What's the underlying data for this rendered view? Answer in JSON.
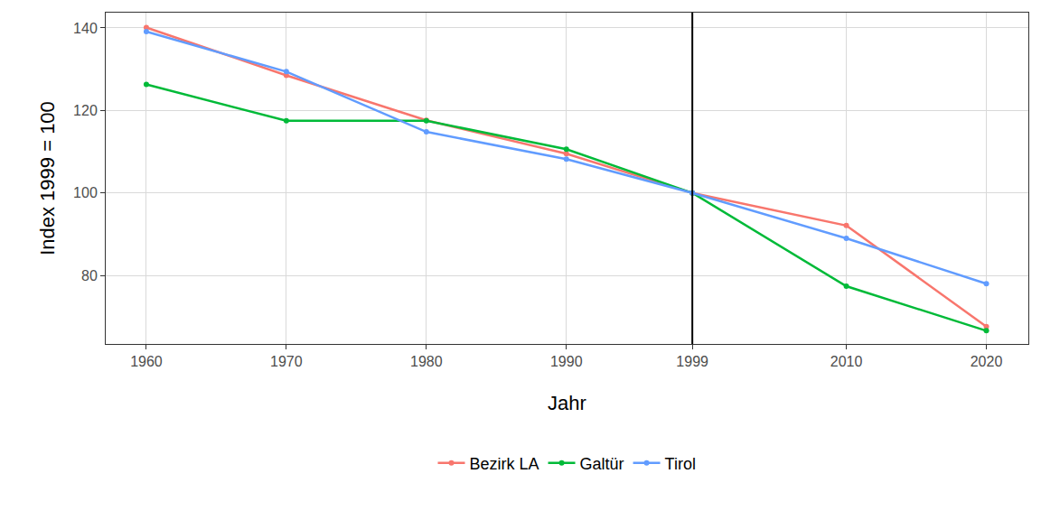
{
  "chart_data": {
    "type": "line",
    "x_label": "Jahr",
    "y_label": "Index 1999 = 100",
    "x": [
      1960,
      1970,
      1980,
      1990,
      1999,
      2010,
      2020
    ],
    "series": [
      {
        "name": "Bezirk LA",
        "color": "#F8766D",
        "values": [
          140.1,
          128.5,
          117.6,
          109.5,
          100,
          92.1,
          67.6
        ]
      },
      {
        "name": "Galtür",
        "color": "#00BA38",
        "values": [
          126.3,
          117.5,
          117.5,
          110.6,
          100,
          77.4,
          66.6
        ]
      },
      {
        "name": "Tirol",
        "color": "#619CFF",
        "values": [
          139.1,
          129.4,
          114.8,
          108.2,
          100,
          89.0,
          78.0
        ]
      }
    ],
    "xlim": [
      1957.1,
      2023
    ],
    "xticks": [
      1960,
      1970,
      1980,
      1990,
      1999,
      2010,
      2020
    ],
    "ylim": [
      63.4,
      143.7
    ],
    "yticks": [
      80,
      100,
      120,
      140
    ],
    "vline": 1999,
    "grid": true,
    "legend": "bottom",
    "marker": "circle"
  }
}
